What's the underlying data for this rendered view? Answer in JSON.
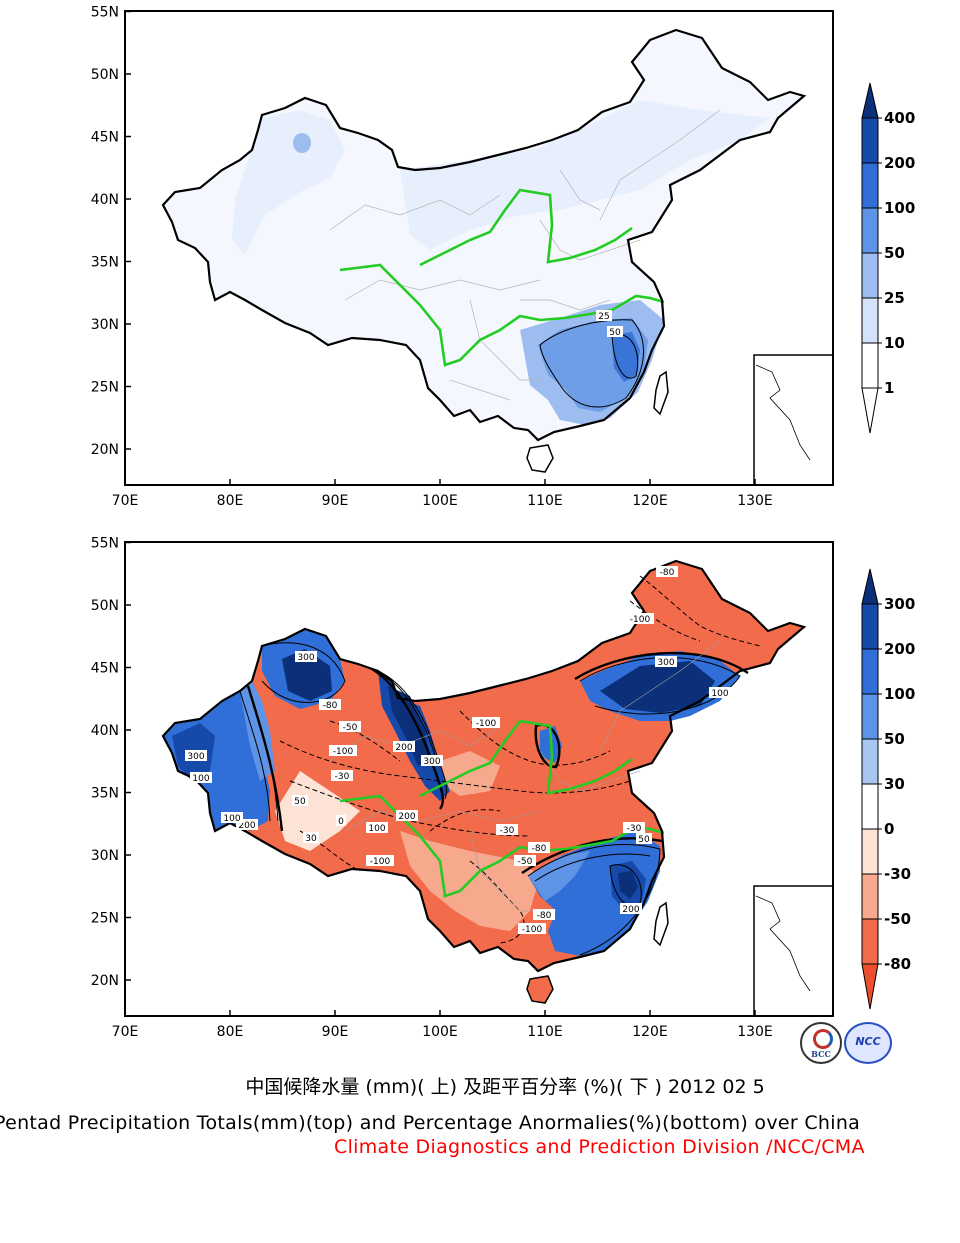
{
  "top_map": {
    "lat_labels": [
      "55N",
      "50N",
      "45N",
      "40N",
      "35N",
      "30N",
      "25N",
      "20N"
    ],
    "lon_labels": [
      "70E",
      "80E",
      "90E",
      "100E",
      "110E",
      "120E",
      "130E"
    ],
    "contour_labels": [
      "25",
      "50"
    ],
    "colorbar_labels": [
      "400",
      "200",
      "100",
      "50",
      "25",
      "10",
      "1"
    ],
    "colorbar_colors": [
      "#0b2f79",
      "#1749ab",
      "#2f6fd7",
      "#5e93e6",
      "#9dbdf0",
      "#d4e2fa",
      "#ffffff"
    ]
  },
  "bottom_map": {
    "lat_labels": [
      "55N",
      "50N",
      "45N",
      "40N",
      "35N",
      "30N",
      "25N",
      "20N"
    ],
    "lon_labels": [
      "70E",
      "80E",
      "90E",
      "100E",
      "110E",
      "120E",
      "130E"
    ],
    "contour_labels": [
      "300",
      "100",
      "300",
      "200",
      "-100",
      "-80",
      "-50",
      "-30",
      "0",
      "30",
      "50",
      "100",
      "200",
      "300",
      "-100",
      "-30",
      "-80",
      "-50",
      "-100",
      "-100",
      "200",
      "100",
      "-80",
      "-100",
      "-30",
      "200",
      "-80",
      "50",
      "300",
      "100"
    ],
    "colorbar_labels": [
      "300",
      "200",
      "100",
      "50",
      "30",
      "0",
      "-30",
      "-50",
      "-80"
    ],
    "colorbar_colors": [
      "#0b2f79",
      "#1749ab",
      "#2f6fd7",
      "#5e93e6",
      "#a8c6f2",
      "#ffffff",
      "#fde2d6",
      "#f7a98d",
      "#f26b4b",
      "#ec4e2e"
    ]
  },
  "captions": {
    "chinese": "中国候降水量 (mm)( 上) 及距平百分率 (%)( 下 ) 2012 02 5",
    "english": "Pentad Precipitation Totals(mm)(top) and Percentage Anormalies(%)(bottom) over China",
    "organization": "Climate Diagnostics and Prediction Division /NCC/CMA"
  },
  "logos": {
    "bcc": "BCC",
    "ncc": "NCC"
  }
}
